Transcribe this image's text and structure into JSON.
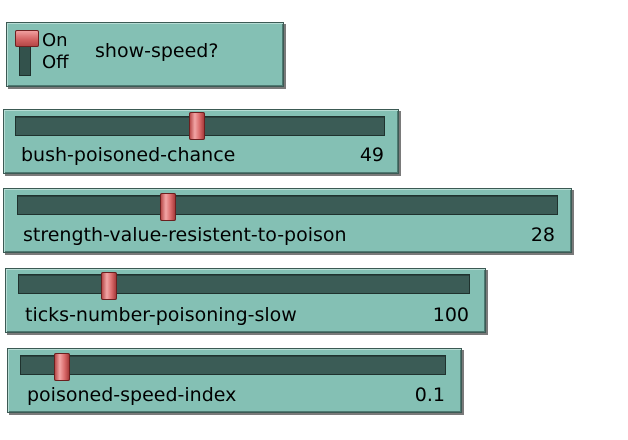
{
  "switch": {
    "on_label": "On",
    "off_label": "Off",
    "label": "show-speed?",
    "state": "on"
  },
  "sliders": [
    {
      "label": "bush-poisoned-chance",
      "value": "49",
      "position": 0.49
    },
    {
      "label": "strength-value-resistent-to-poison",
      "value": "28",
      "position": 0.28
    },
    {
      "label": "ticks-number-poisoning-slow",
      "value": "100",
      "position": 0.2
    },
    {
      "label": "poisoned-speed-index",
      "value": "0.1",
      "position": 0.1
    }
  ],
  "colors": {
    "widget_bg": "#84c0b4",
    "track": "#3b5c56",
    "thumb": "#d96a6a"
  }
}
